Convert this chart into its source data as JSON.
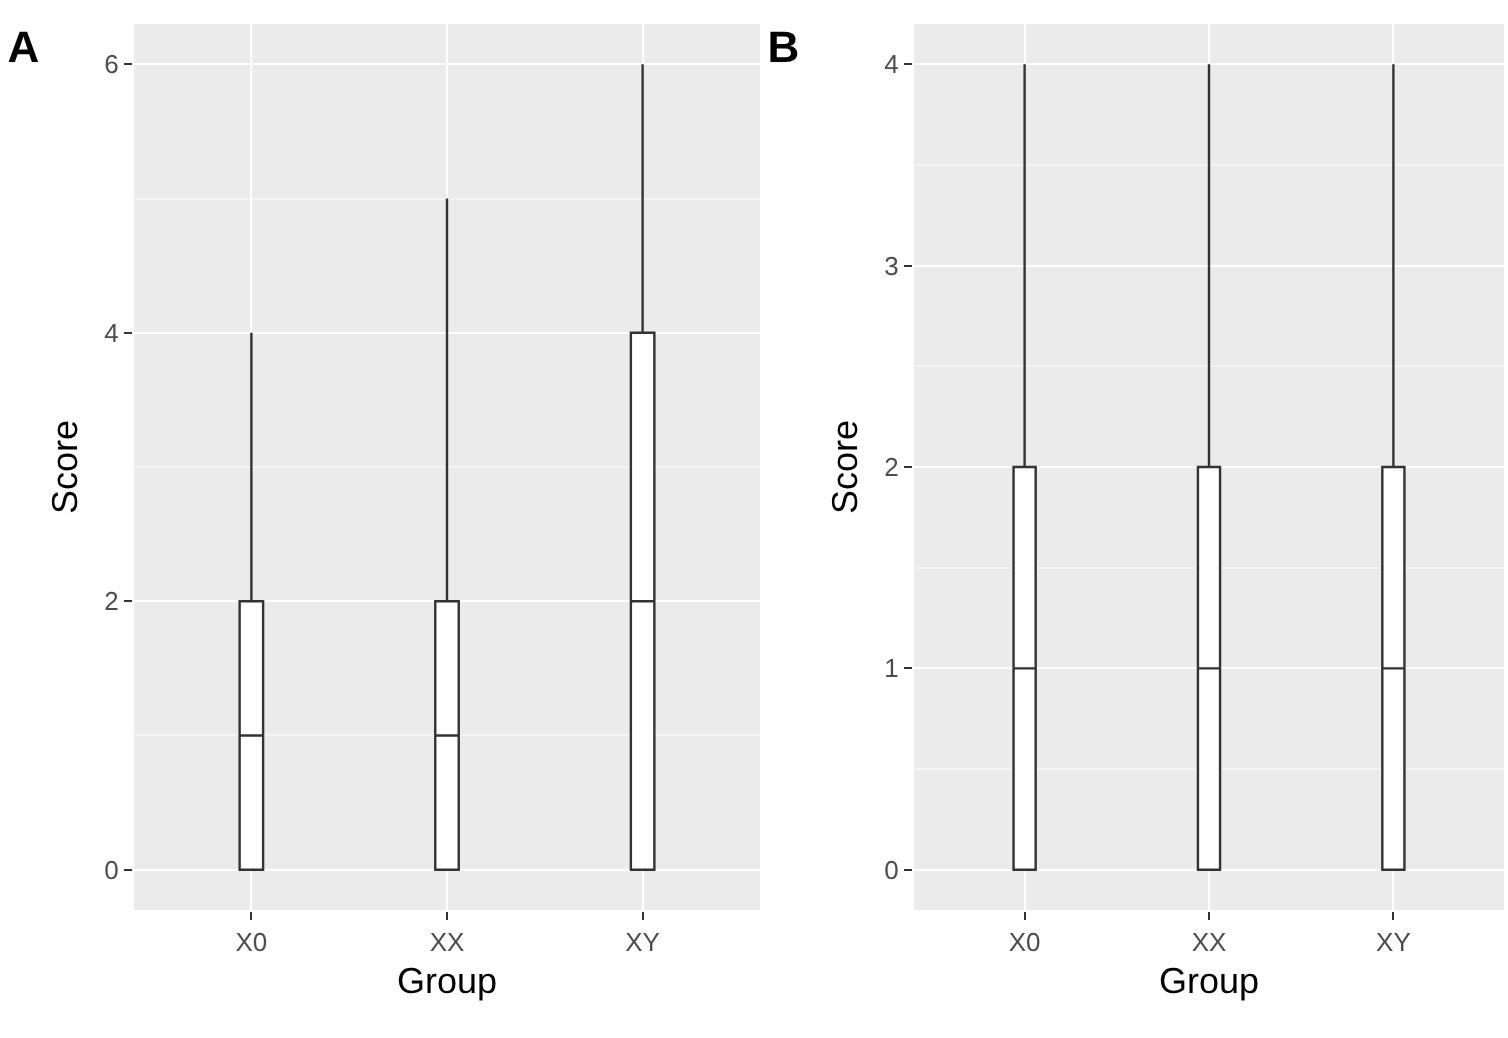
{
  "chart_data": [
    {
      "type": "box",
      "title": "A",
      "xlabel": "Group",
      "ylabel": "Score",
      "categories": [
        "X0",
        "XX",
        "XY"
      ],
      "ylim": [
        -0.3,
        6.3
      ],
      "yticks": [
        0,
        2,
        4,
        6
      ],
      "grid": true,
      "color": "#333333",
      "boxes": [
        {
          "low": 0,
          "q1": 0,
          "median": 1,
          "q3": 2,
          "high": 4
        },
        {
          "low": 0,
          "q1": 0,
          "median": 1,
          "q3": 2,
          "high": 5
        },
        {
          "low": 0,
          "q1": 0,
          "median": 2,
          "q3": 4,
          "high": 6
        }
      ]
    },
    {
      "type": "box",
      "title": "B",
      "xlabel": "Group",
      "ylabel": "Score",
      "categories": [
        "X0",
        "XX",
        "XY"
      ],
      "ylim": [
        -0.2,
        4.2
      ],
      "yticks": [
        0,
        1,
        2,
        3,
        4
      ],
      "grid": true,
      "color": "#333333",
      "boxes": [
        {
          "low": 0,
          "q1": 0,
          "median": 1,
          "q3": 2,
          "high": 4
        },
        {
          "low": 0,
          "q1": 0,
          "median": 1,
          "q3": 2,
          "high": 4
        },
        {
          "low": 0,
          "q1": 0,
          "median": 1,
          "q3": 2,
          "high": 4
        }
      ]
    }
  ]
}
